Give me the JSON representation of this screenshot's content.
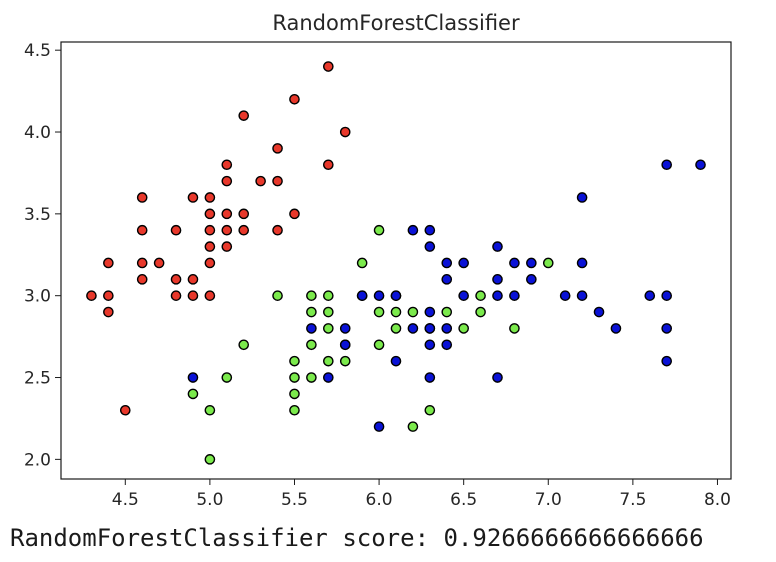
{
  "output_text": "RandomForestClassifier score: 0.9266666666666666",
  "chart_data": {
    "type": "scatter",
    "title": "RandomForestClassifier",
    "xlabel": "",
    "ylabel": "",
    "xlim": [
      4.12,
      8.08
    ],
    "ylim": [
      1.88,
      4.55
    ],
    "xticks": [
      4.5,
      5.0,
      5.5,
      6.0,
      6.5,
      7.0,
      7.5,
      8.0
    ],
    "yticks": [
      2.0,
      2.5,
      3.0,
      3.5,
      4.0,
      4.5
    ],
    "grid": false,
    "legend": "none",
    "marker_edge_color": "#000000",
    "series": [
      {
        "color": "#e8382b",
        "points": [
          [
            4.3,
            3.0
          ],
          [
            4.4,
            3.0
          ],
          [
            4.4,
            3.2
          ],
          [
            4.4,
            2.9
          ],
          [
            4.5,
            2.3
          ],
          [
            4.6,
            3.6
          ],
          [
            4.6,
            3.4
          ],
          [
            4.6,
            3.2
          ],
          [
            4.6,
            3.1
          ],
          [
            4.7,
            3.2
          ],
          [
            4.8,
            3.4
          ],
          [
            4.8,
            3.1
          ],
          [
            4.8,
            3.0
          ],
          [
            4.9,
            3.6
          ],
          [
            4.9,
            3.1
          ],
          [
            4.9,
            3.0
          ],
          [
            5.0,
            3.6
          ],
          [
            5.0,
            3.5
          ],
          [
            5.0,
            3.4
          ],
          [
            5.0,
            3.3
          ],
          [
            5.0,
            3.2
          ],
          [
            5.0,
            3.0
          ],
          [
            5.1,
            3.8
          ],
          [
            5.1,
            3.7
          ],
          [
            5.1,
            3.5
          ],
          [
            5.1,
            3.4
          ],
          [
            5.1,
            3.3
          ],
          [
            5.2,
            4.1
          ],
          [
            5.2,
            3.5
          ],
          [
            5.2,
            3.4
          ],
          [
            5.3,
            3.7
          ],
          [
            5.4,
            3.9
          ],
          [
            5.4,
            3.7
          ],
          [
            5.4,
            3.4
          ],
          [
            5.5,
            4.2
          ],
          [
            5.5,
            3.5
          ],
          [
            5.7,
            4.4
          ],
          [
            5.7,
            3.8
          ],
          [
            5.8,
            4.0
          ]
        ]
      },
      {
        "color": "#7bea4c",
        "points": [
          [
            4.9,
            2.4
          ],
          [
            5.0,
            2.3
          ],
          [
            5.0,
            2.0
          ],
          [
            5.1,
            2.5
          ],
          [
            5.2,
            2.7
          ],
          [
            5.4,
            3.0
          ],
          [
            5.5,
            2.6
          ],
          [
            5.5,
            2.5
          ],
          [
            5.5,
            2.4
          ],
          [
            5.5,
            2.3
          ],
          [
            5.6,
            3.0
          ],
          [
            5.6,
            2.9
          ],
          [
            5.6,
            2.7
          ],
          [
            5.6,
            2.5
          ],
          [
            5.7,
            3.0
          ],
          [
            5.7,
            2.9
          ],
          [
            5.7,
            2.8
          ],
          [
            5.7,
            2.6
          ],
          [
            5.8,
            2.7
          ],
          [
            5.8,
            2.6
          ],
          [
            5.9,
            3.2
          ],
          [
            5.9,
            3.0
          ],
          [
            6.0,
            3.4
          ],
          [
            6.0,
            2.9
          ],
          [
            6.0,
            2.7
          ],
          [
            6.1,
            3.0
          ],
          [
            6.1,
            2.9
          ],
          [
            6.1,
            2.8
          ],
          [
            6.2,
            2.9
          ],
          [
            6.2,
            2.2
          ],
          [
            6.3,
            2.8
          ],
          [
            6.3,
            2.3
          ],
          [
            6.4,
            2.9
          ],
          [
            6.5,
            2.8
          ],
          [
            6.6,
            3.0
          ],
          [
            6.6,
            2.9
          ],
          [
            6.8,
            2.8
          ],
          [
            7.0,
            3.2
          ]
        ]
      },
      {
        "color": "#0a12d6",
        "points": [
          [
            4.9,
            2.5
          ],
          [
            5.6,
            2.8
          ],
          [
            5.7,
            2.5
          ],
          [
            5.8,
            2.8
          ],
          [
            5.8,
            2.7
          ],
          [
            5.9,
            3.0
          ],
          [
            6.0,
            3.0
          ],
          [
            6.0,
            2.2
          ],
          [
            6.1,
            3.0
          ],
          [
            6.1,
            2.6
          ],
          [
            6.2,
            3.4
          ],
          [
            6.2,
            2.8
          ],
          [
            6.3,
            3.4
          ],
          [
            6.3,
            3.3
          ],
          [
            6.3,
            2.9
          ],
          [
            6.3,
            2.8
          ],
          [
            6.3,
            2.7
          ],
          [
            6.3,
            2.5
          ],
          [
            6.4,
            3.2
          ],
          [
            6.4,
            3.1
          ],
          [
            6.4,
            2.8
          ],
          [
            6.4,
            2.7
          ],
          [
            6.5,
            3.2
          ],
          [
            6.5,
            3.0
          ],
          [
            6.7,
            3.3
          ],
          [
            6.7,
            3.1
          ],
          [
            6.7,
            3.0
          ],
          [
            6.7,
            2.5
          ],
          [
            6.8,
            3.2
          ],
          [
            6.8,
            3.0
          ],
          [
            6.9,
            3.2
          ],
          [
            6.9,
            3.1
          ],
          [
            7.1,
            3.0
          ],
          [
            7.2,
            3.6
          ],
          [
            7.2,
            3.2
          ],
          [
            7.2,
            3.0
          ],
          [
            7.3,
            2.9
          ],
          [
            7.4,
            2.8
          ],
          [
            7.6,
            3.0
          ],
          [
            7.7,
            3.8
          ],
          [
            7.7,
            3.0
          ],
          [
            7.7,
            2.8
          ],
          [
            7.7,
            2.6
          ],
          [
            7.9,
            3.8
          ]
        ]
      }
    ]
  }
}
